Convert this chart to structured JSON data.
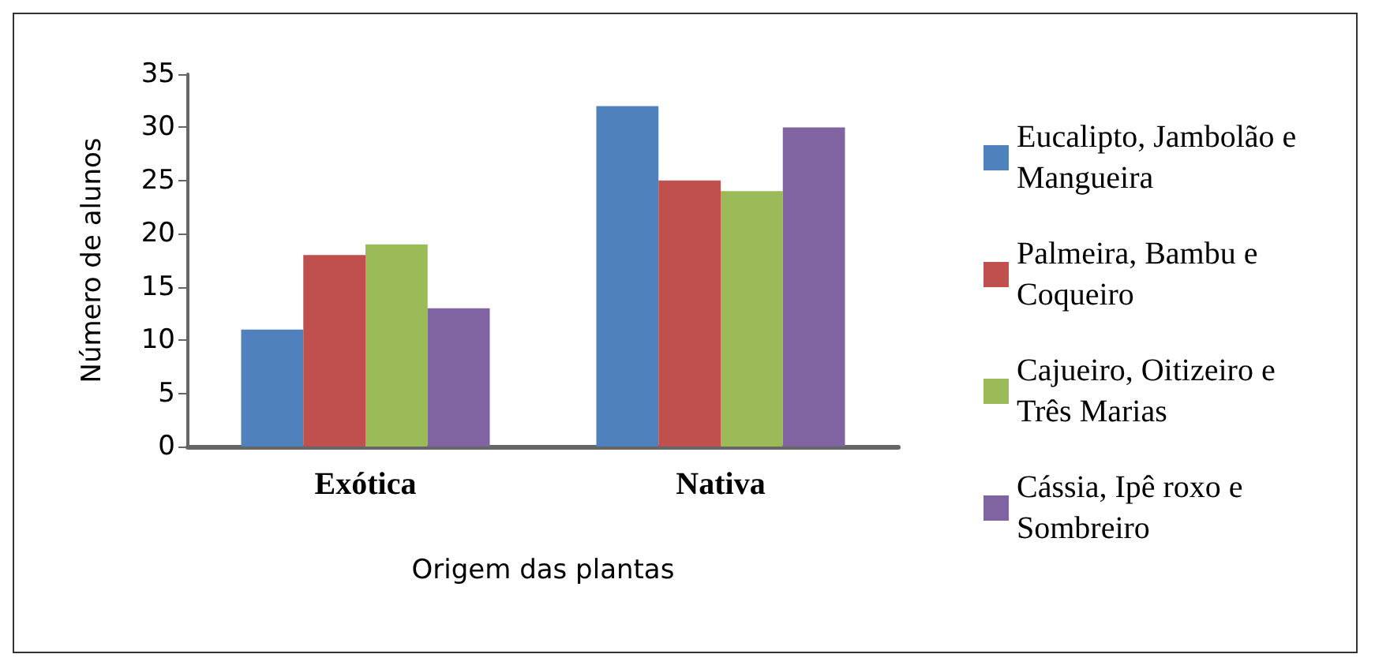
{
  "chart_data": {
    "type": "bar",
    "xlabel": "Origem das plantas",
    "ylabel": "Número de alunos",
    "categories": [
      "Exótica",
      "Nativa"
    ],
    "series": [
      {
        "name": "Eucalipto, Jambolão e Mangueira",
        "color": "#4f81bd",
        "values": [
          11,
          32
        ]
      },
      {
        "name": "Palmeira, Bambu e Coqueiro",
        "color": "#c0504d",
        "values": [
          18,
          25
        ]
      },
      {
        "name": "Cajueiro, Oitizeiro e Três Marias",
        "color": "#9bbb59",
        "values": [
          19,
          24
        ]
      },
      {
        "name": "Cássia, Ipê roxo e Sombreiro",
        "color": "#8064a2",
        "values": [
          13,
          30
        ]
      }
    ],
    "ylim": [
      0,
      35
    ],
    "yticks": [
      0,
      5,
      10,
      15,
      20,
      25,
      30,
      35
    ],
    "grid": false,
    "legend": "right"
  }
}
